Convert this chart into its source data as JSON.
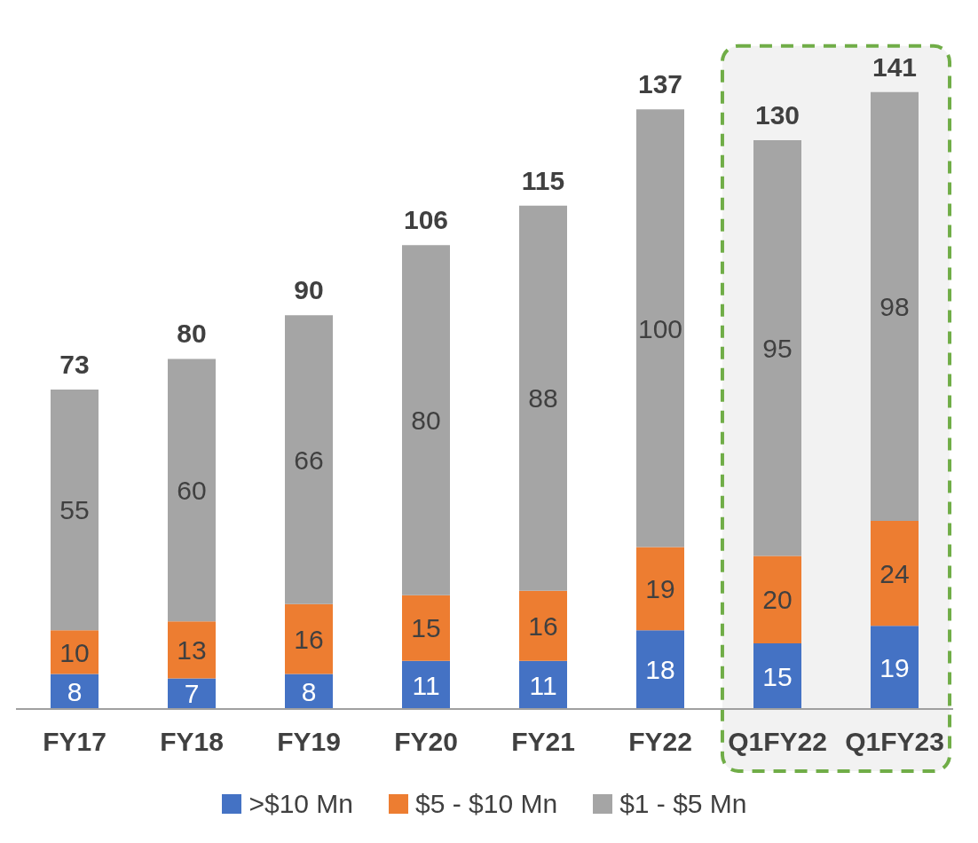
{
  "chart_data": {
    "type": "bar",
    "stacked": true,
    "data_labels": true,
    "legend": "bottom",
    "categories": [
      "FY17",
      "FY18",
      "FY19",
      "FY20",
      "FY21",
      "FY22",
      "Q1FY22",
      "Q1FY23"
    ],
    "series": [
      {
        "name": ">$10 Mn",
        "color": "#4472c4",
        "values": [
          8,
          7,
          8,
          11,
          11,
          18,
          15,
          19
        ]
      },
      {
        "name": "$5 - $10 Mn",
        "color": "#ed7d31",
        "values": [
          10,
          13,
          16,
          15,
          16,
          19,
          20,
          24
        ]
      },
      {
        "name": "$1 - $5 Mn",
        "color": "#a5a5a5",
        "values": [
          55,
          60,
          66,
          80,
          88,
          100,
          95,
          98
        ]
      }
    ],
    "totals": [
      "73",
      "80",
      "90",
      "106",
      "115",
      "137",
      "130",
      "141"
    ],
    "bands": [
      {
        "axis": "x",
        "from": "Q1FY22",
        "to": "Q1FY23",
        "color": "#f2f2f2"
      }
    ]
  }
}
